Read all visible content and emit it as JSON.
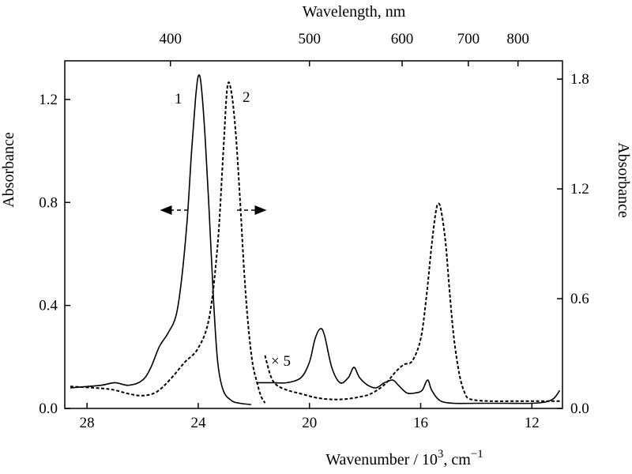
{
  "chart_data": {
    "type": "line",
    "axes": {
      "bottom": {
        "label_main": "Wavenumber / 10",
        "label_sup": "3",
        "label_unit": ",  cm",
        "label_unit_sup": "−1",
        "range": [
          28.8,
          10.9
        ],
        "ticks": [
          28,
          24,
          20,
          16,
          12
        ],
        "tick_labels": [
          "28",
          "24",
          "20",
          "16",
          "12"
        ]
      },
      "top": {
        "label": "Wavelength, nm",
        "ticks": [
          400,
          500,
          600,
          700,
          800
        ],
        "tick_labels": [
          "400",
          "500",
          "600",
          "700",
          "800"
        ]
      },
      "left": {
        "label": "Absorbance",
        "range": [
          0,
          1.35
        ],
        "ticks": [
          0,
          0.4,
          0.8,
          1.2
        ],
        "tick_labels": [
          "0.0",
          "0.4",
          "0.8",
          "1.2"
        ]
      },
      "right": {
        "label": "Absorbance",
        "range": [
          0,
          1.9
        ],
        "ticks": [
          0,
          0.6,
          1.2,
          1.8
        ],
        "tick_labels": [
          "0.0",
          "0.6",
          "1.2",
          "1.8"
        ]
      }
    },
    "series": [
      {
        "name": "1",
        "style": "solid",
        "axis": "left",
        "points": [
          [
            28.6,
            0.08
          ],
          [
            27.5,
            0.09
          ],
          [
            27.0,
            0.1
          ],
          [
            26.5,
            0.09
          ],
          [
            26.0,
            0.11
          ],
          [
            25.7,
            0.16
          ],
          [
            25.4,
            0.24
          ],
          [
            25.1,
            0.29
          ],
          [
            24.8,
            0.36
          ],
          [
            24.6,
            0.5
          ],
          [
            24.4,
            0.73
          ],
          [
            24.25,
            0.98
          ],
          [
            24.1,
            1.2
          ],
          [
            24.0,
            1.29
          ],
          [
            23.9,
            1.26
          ],
          [
            23.75,
            1.05
          ],
          [
            23.6,
            0.75
          ],
          [
            23.45,
            0.42
          ],
          [
            23.3,
            0.18
          ],
          [
            23.1,
            0.07
          ],
          [
            22.8,
            0.03
          ],
          [
            22.5,
            0.02
          ],
          [
            22.1,
            0.015
          ]
        ]
      },
      {
        "name": "2",
        "style": "dashed",
        "axis": "right",
        "points": [
          [
            28.6,
            0.12
          ],
          [
            27.5,
            0.11
          ],
          [
            27.0,
            0.1
          ],
          [
            26.5,
            0.08
          ],
          [
            26.0,
            0.07
          ],
          [
            25.5,
            0.09
          ],
          [
            25.0,
            0.16
          ],
          [
            24.5,
            0.25
          ],
          [
            24.0,
            0.33
          ],
          [
            23.6,
            0.5
          ],
          [
            23.3,
            0.9
          ],
          [
            23.1,
            1.4
          ],
          [
            22.95,
            1.76
          ],
          [
            22.8,
            1.72
          ],
          [
            22.65,
            1.5
          ],
          [
            22.5,
            1.15
          ],
          [
            22.35,
            0.75
          ],
          [
            22.2,
            0.45
          ],
          [
            22.05,
            0.25
          ],
          [
            21.9,
            0.15
          ],
          [
            21.75,
            0.07
          ],
          [
            21.6,
            0.03
          ]
        ]
      },
      {
        "name": "1",
        "style": "solid",
        "axis": "left",
        "scale_note": "× 5",
        "points": [
          [
            21.9,
            0.1
          ],
          [
            21.3,
            0.1
          ],
          [
            20.8,
            0.1
          ],
          [
            20.3,
            0.12
          ],
          [
            20.0,
            0.18
          ],
          [
            19.8,
            0.27
          ],
          [
            19.6,
            0.31
          ],
          [
            19.45,
            0.28
          ],
          [
            19.2,
            0.16
          ],
          [
            18.9,
            0.1
          ],
          [
            18.6,
            0.12
          ],
          [
            18.4,
            0.16
          ],
          [
            18.2,
            0.12
          ],
          [
            17.9,
            0.09
          ],
          [
            17.6,
            0.08
          ],
          [
            17.3,
            0.1
          ],
          [
            17.0,
            0.11
          ],
          [
            16.8,
            0.09
          ],
          [
            16.5,
            0.06
          ],
          [
            16.2,
            0.06
          ],
          [
            15.95,
            0.07
          ],
          [
            15.75,
            0.11
          ],
          [
            15.6,
            0.07
          ],
          [
            15.3,
            0.03
          ],
          [
            14.8,
            0.02
          ],
          [
            14.0,
            0.02
          ],
          [
            13.0,
            0.02
          ],
          [
            12.0,
            0.02
          ],
          [
            11.5,
            0.025
          ],
          [
            11.2,
            0.04
          ],
          [
            11.0,
            0.07
          ]
        ]
      },
      {
        "name": "2",
        "style": "dashed",
        "axis": "right",
        "scale_note": "× 5",
        "points": [
          [
            21.6,
            0.29
          ],
          [
            21.4,
            0.18
          ],
          [
            21.2,
            0.13
          ],
          [
            20.8,
            0.1
          ],
          [
            20.3,
            0.08
          ],
          [
            19.8,
            0.06
          ],
          [
            19.3,
            0.05
          ],
          [
            18.8,
            0.05
          ],
          [
            18.3,
            0.06
          ],
          [
            17.8,
            0.08
          ],
          [
            17.3,
            0.13
          ],
          [
            16.9,
            0.2
          ],
          [
            16.6,
            0.24
          ],
          [
            16.3,
            0.26
          ],
          [
            16.0,
            0.38
          ],
          [
            15.8,
            0.6
          ],
          [
            15.6,
            0.9
          ],
          [
            15.45,
            1.08
          ],
          [
            15.35,
            1.12
          ],
          [
            15.25,
            1.07
          ],
          [
            15.1,
            0.9
          ],
          [
            14.95,
            0.62
          ],
          [
            14.8,
            0.38
          ],
          [
            14.6,
            0.18
          ],
          [
            14.4,
            0.08
          ],
          [
            14.2,
            0.05
          ],
          [
            13.5,
            0.04
          ],
          [
            12.5,
            0.04
          ],
          [
            11.5,
            0.04
          ],
          [
            11.0,
            0.04
          ]
        ]
      }
    ],
    "annotations": {
      "label_1": "1",
      "label_2": "2",
      "scale": "× 5"
    }
  }
}
